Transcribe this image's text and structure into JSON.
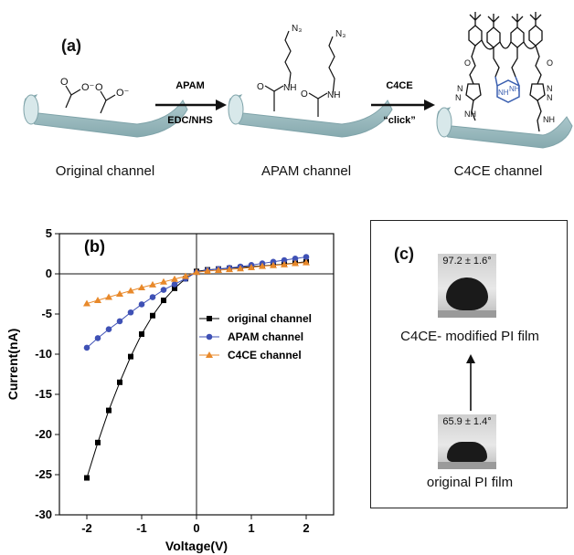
{
  "panel_a": {
    "label": "(a)",
    "stages": [
      {
        "caption": "Original channel"
      },
      {
        "caption": "APAM channel"
      },
      {
        "caption": "C4CE channel"
      }
    ],
    "arrows": [
      {
        "top_label": "APAM",
        "bottom_label": "EDC/NHS"
      },
      {
        "top_label": "C4CE",
        "bottom_label": "“click”"
      }
    ],
    "chem": {
      "carboxylate_O": "O",
      "carboxylate_Ominus": "O⁻",
      "amide_NH": "NH",
      "amide_O": "O",
      "azide": "N₃",
      "triazole_N": "N",
      "nh": "NH"
    },
    "colors": {
      "channel": "#9fbfc4",
      "channel_dark": "#7fa3a9",
      "highlight": "#3a5fb0"
    }
  },
  "panel_b": {
    "label": "(b)",
    "chart_data": {
      "type": "line",
      "xlabel": "Voltage(V)",
      "ylabel": "Current(nA)",
      "xlim": [
        -2.5,
        2.5
      ],
      "ylim": [
        -30,
        5
      ],
      "xticks": [
        -2,
        -1,
        0,
        1,
        2
      ],
      "yticks": [
        5,
        0,
        -5,
        -10,
        -15,
        -20,
        -25,
        -30
      ],
      "legend_position": "right-center",
      "series": [
        {
          "name": "original channel",
          "color": "#000000",
          "marker": "square",
          "x": [
            -2.0,
            -1.8,
            -1.6,
            -1.4,
            -1.2,
            -1.0,
            -0.8,
            -0.6,
            -0.4,
            -0.2,
            0.0,
            0.2,
            0.4,
            0.6,
            0.8,
            1.0,
            1.2,
            1.4,
            1.6,
            1.8,
            2.0
          ],
          "y": [
            -25.4,
            -21.0,
            -17.0,
            -13.5,
            -10.3,
            -7.5,
            -5.2,
            -3.3,
            -1.8,
            -0.6,
            0.3,
            0.5,
            0.6,
            0.7,
            0.8,
            0.9,
            1.0,
            1.1,
            1.2,
            1.35,
            1.5
          ]
        },
        {
          "name": "APAM channel",
          "color": "#3f51b5",
          "marker": "circle",
          "x": [
            -2.0,
            -1.8,
            -1.6,
            -1.4,
            -1.2,
            -1.0,
            -0.8,
            -0.6,
            -0.4,
            -0.2,
            0.0,
            0.2,
            0.4,
            0.6,
            0.8,
            1.0,
            1.2,
            1.4,
            1.6,
            1.8,
            2.0
          ],
          "y": [
            -9.2,
            -8.0,
            -6.9,
            -5.9,
            -4.8,
            -3.8,
            -2.9,
            -2.0,
            -1.3,
            -0.6,
            0.2,
            0.45,
            0.6,
            0.75,
            0.9,
            1.1,
            1.3,
            1.5,
            1.7,
            1.9,
            2.1
          ]
        },
        {
          "name": "C4CE channel",
          "color": "#e8892b",
          "marker": "triangle",
          "x": [
            -2.0,
            -1.8,
            -1.6,
            -1.4,
            -1.2,
            -1.0,
            -0.8,
            -0.6,
            -0.4,
            -0.2,
            0.0,
            0.2,
            0.4,
            0.6,
            0.8,
            1.0,
            1.2,
            1.4,
            1.6,
            1.8,
            2.0
          ],
          "y": [
            -3.7,
            -3.3,
            -2.9,
            -2.5,
            -2.1,
            -1.7,
            -1.35,
            -1.0,
            -0.65,
            -0.3,
            0.2,
            0.35,
            0.45,
            0.55,
            0.65,
            0.8,
            0.95,
            1.05,
            1.15,
            1.3,
            1.4
          ]
        }
      ]
    }
  },
  "panel_c": {
    "label": "(c)",
    "top": {
      "angle": "97.2 ± 1.6°",
      "caption": "C4CE- modified PI film"
    },
    "bottom": {
      "angle": "65.9 ± 1.4°",
      "caption": "original PI film"
    }
  }
}
